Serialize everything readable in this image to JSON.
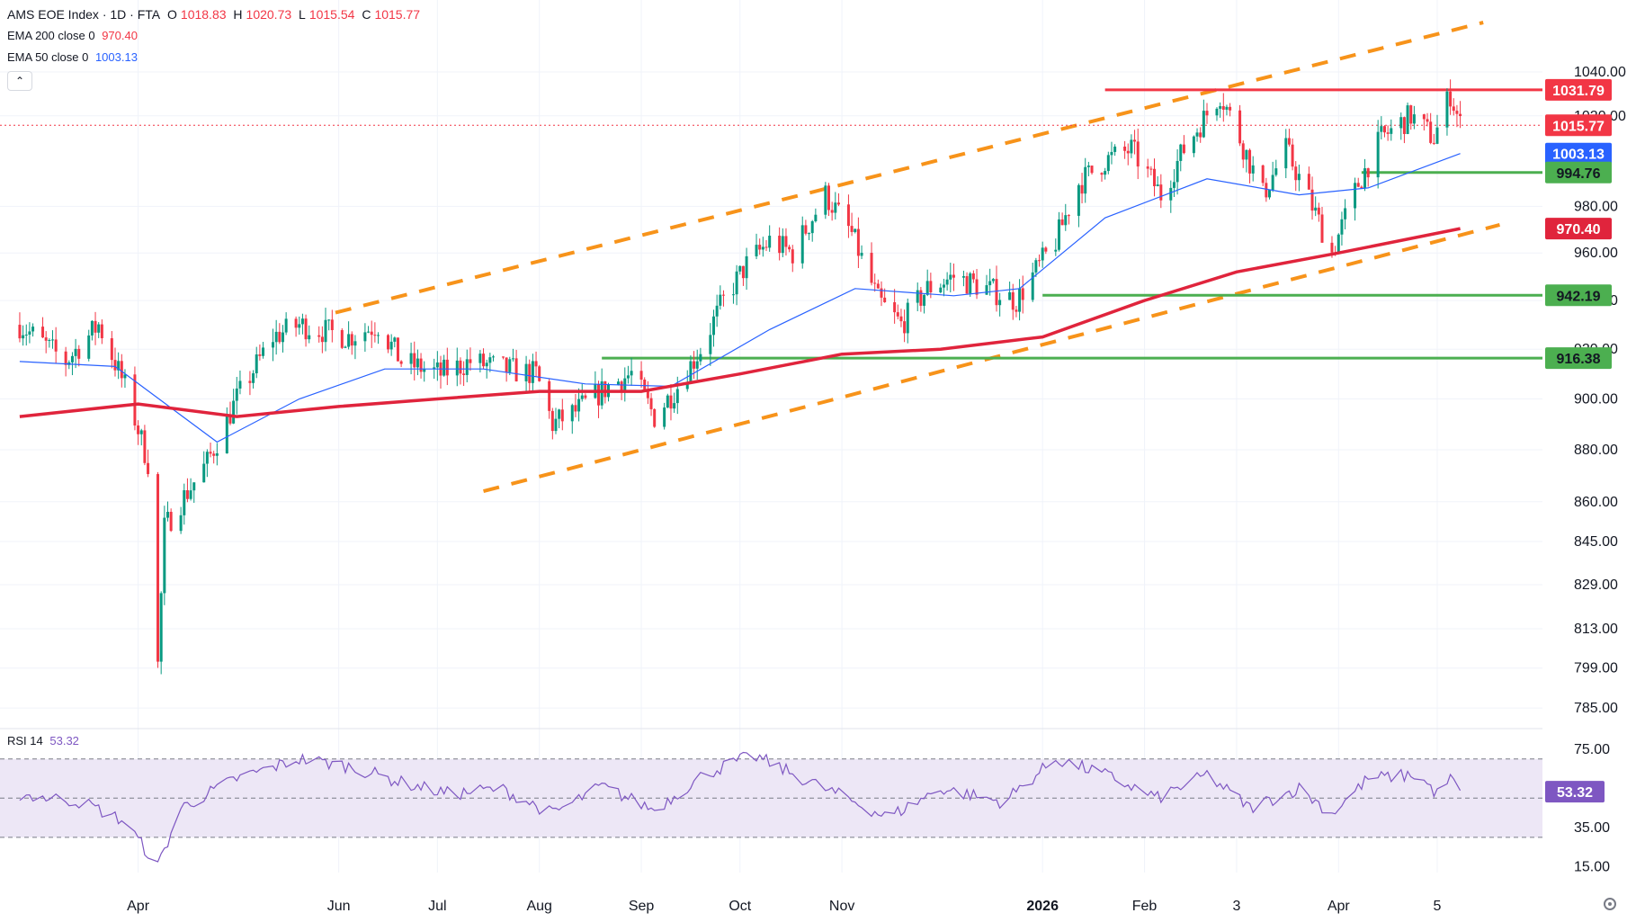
{
  "header": {
    "title": "AMS EOE Index · 1D · FTA",
    "ohlc": [
      {
        "label": "O",
        "value": "1018.83"
      },
      {
        "label": "H",
        "value": "1020.73"
      },
      {
        "label": "L",
        "value": "1015.54"
      },
      {
        "label": "C",
        "value": "1015.77"
      }
    ],
    "ema200": {
      "label": "EMA 200 close 0",
      "value": "970.40",
      "color": "#f23645"
    },
    "ema50": {
      "label": "EMA 50 close 0",
      "value": "1003.13",
      "color": "#2962ff"
    },
    "collapse_icon": "chevron-up-icon",
    "collapse_glyph": "⌃"
  },
  "rsi_header": {
    "label": "RSI 14",
    "value": "53.32",
    "color": "#7e57c2"
  },
  "colors": {
    "up": "#089981",
    "down": "#f23645",
    "ema200": "#e0243c",
    "ema50": "#2962ff",
    "channel": "#f7931a",
    "support": "#4caf50",
    "resistance": "#f23645",
    "rsi": "#7e57c2",
    "rsi_band": "#ede7f6"
  },
  "chart_data": [
    {
      "type": "candlestick",
      "title": "AMS EOE Index · 1D · FTA",
      "x_labels": [
        "Apr",
        "Jun",
        "Jul",
        "Aug",
        "Sep",
        "Oct",
        "Nov",
        "2026",
        "Feb",
        "3",
        "Apr",
        "5"
      ],
      "y_ticks": [
        "1040.00",
        "1020.00",
        "980.00",
        "960.00",
        "940.00",
        "920.00",
        "900.00",
        "880.00",
        "860.00",
        "845.00",
        "829.00",
        "813.00",
        "799.00",
        "785.00"
      ],
      "y_scale": "log",
      "ylim": [
        781,
        1063
      ],
      "grid": true,
      "price_tags": [
        {
          "value": "1031.79",
          "kind": "resistance"
        },
        {
          "value": "1015.77",
          "kind": "last"
        },
        {
          "value": "1003.13",
          "kind": "ema50"
        },
        {
          "value": "994.76",
          "kind": "support"
        },
        {
          "value": "970.40",
          "kind": "ema200"
        },
        {
          "value": "942.19",
          "kind": "support"
        },
        {
          "value": "916.38",
          "kind": "support"
        }
      ],
      "horizontal_lines": [
        {
          "value": 1031.79,
          "kind": "resistance",
          "from": "2026-01-20"
        },
        {
          "value": 994.76,
          "kind": "support",
          "from": "2026-04-08"
        },
        {
          "value": 942.19,
          "kind": "support",
          "from": "2026-01-01"
        },
        {
          "value": 916.38,
          "kind": "support",
          "from": "2025-08-20"
        }
      ],
      "channel": {
        "upper": [
          [
            "2025-05-31",
            935
          ],
          [
            "2026-05-15",
            1063
          ]
        ],
        "lower": [
          [
            "2025-07-15",
            864
          ],
          [
            "2026-05-20",
            972
          ]
        ]
      },
      "price_path": [
        [
          "2025-02-24",
          930
        ],
        [
          "2025-03-10",
          915
        ],
        [
          "2025-03-20",
          930
        ],
        [
          "2025-03-28",
          905
        ],
        [
          "2025-04-04",
          875
        ],
        [
          "2025-04-07",
          800
        ],
        [
          "2025-04-09",
          850
        ],
        [
          "2025-04-14",
          860
        ],
        [
          "2025-04-22",
          875
        ],
        [
          "2025-05-01",
          900
        ],
        [
          "2025-05-12",
          925
        ],
        [
          "2025-05-20",
          930
        ],
        [
          "2025-06-04",
          925
        ],
        [
          "2025-06-13",
          930
        ],
        [
          "2025-06-20",
          915
        ],
        [
          "2025-07-02",
          910
        ],
        [
          "2025-07-11",
          915
        ],
        [
          "2025-07-21",
          912
        ],
        [
          "2025-07-31",
          910
        ],
        [
          "2025-08-05",
          890
        ],
        [
          "2025-08-12",
          895
        ],
        [
          "2025-08-22",
          905
        ],
        [
          "2025-08-29",
          910
        ],
        [
          "2025-09-05",
          893
        ],
        [
          "2025-09-12",
          905
        ],
        [
          "2025-09-19",
          920
        ],
        [
          "2025-09-26",
          940
        ],
        [
          "2025-10-03",
          955
        ],
        [
          "2025-10-10",
          965
        ],
        [
          "2025-10-17",
          960
        ],
        [
          "2025-10-27",
          985
        ],
        [
          "2025-11-04",
          968
        ],
        [
          "2025-11-12",
          940
        ],
        [
          "2025-11-19",
          930
        ],
        [
          "2025-11-27",
          945
        ],
        [
          "2025-12-05",
          950
        ],
        [
          "2025-12-15",
          945
        ],
        [
          "2025-12-24",
          940
        ],
        [
          "2026-01-05",
          965
        ],
        [
          "2026-01-12",
          990
        ],
        [
          "2026-01-20",
          1000
        ],
        [
          "2026-01-28",
          1005
        ],
        [
          "2026-02-06",
          985
        ],
        [
          "2026-02-13",
          1005
        ],
        [
          "2026-02-24",
          1030
        ],
        [
          "2026-03-02",
          1010
        ],
        [
          "2026-03-09",
          985
        ],
        [
          "2026-03-16",
          1005
        ],
        [
          "2026-03-24",
          980
        ],
        [
          "2026-03-30",
          960
        ],
        [
          "2026-04-07",
          990
        ],
        [
          "2026-04-14",
          1010
        ],
        [
          "2026-04-23",
          1020
        ],
        [
          "2026-04-30",
          1010
        ],
        [
          "2026-05-05",
          1030
        ],
        [
          "2026-05-08",
          1016
        ]
      ],
      "ema200_path": [
        [
          "2025-02-24",
          893
        ],
        [
          "2025-04-01",
          898
        ],
        [
          "2025-05-01",
          893
        ],
        [
          "2025-06-01",
          897
        ],
        [
          "2025-07-01",
          900
        ],
        [
          "2025-08-01",
          903
        ],
        [
          "2025-09-01",
          903
        ],
        [
          "2025-10-01",
          910
        ],
        [
          "2025-11-01",
          918
        ],
        [
          "2025-12-01",
          920
        ],
        [
          "2026-01-01",
          925
        ],
        [
          "2026-02-01",
          940
        ],
        [
          "2026-03-01",
          952
        ],
        [
          "2026-04-01",
          960
        ],
        [
          "2026-05-08",
          970.4
        ]
      ],
      "ema50_path": [
        [
          "2025-02-24",
          915
        ],
        [
          "2025-03-25",
          913
        ],
        [
          "2025-04-25",
          883
        ],
        [
          "2025-05-20",
          900
        ],
        [
          "2025-06-15",
          912
        ],
        [
          "2025-07-15",
          912
        ],
        [
          "2025-08-15",
          906
        ],
        [
          "2025-09-10",
          905
        ],
        [
          "2025-10-10",
          928
        ],
        [
          "2025-11-05",
          945
        ],
        [
          "2025-12-05",
          942
        ],
        [
          "2025-12-25",
          945
        ],
        [
          "2026-01-20",
          975
        ],
        [
          "2026-02-20",
          992
        ],
        [
          "2026-03-20",
          985
        ],
        [
          "2026-04-10",
          988
        ],
        [
          "2026-05-08",
          1003.13
        ]
      ],
      "last": {
        "open": 1018.83,
        "high": 1020.73,
        "low": 1015.54,
        "close": 1015.77
      }
    },
    {
      "type": "line",
      "title": "RSI 14",
      "y_ticks": [
        "75.00",
        "35.00",
        "15.00"
      ],
      "band": [
        30,
        70
      ],
      "midline": 50,
      "ylim": [
        12,
        80
      ],
      "last_value": "53.32",
      "rsi_path": [
        [
          "2025-02-24",
          52
        ],
        [
          "2025-03-15",
          48
        ],
        [
          "2025-03-28",
          38
        ],
        [
          "2025-04-07",
          15
        ],
        [
          "2025-04-14",
          45
        ],
        [
          "2025-05-01",
          60
        ],
        [
          "2025-05-20",
          70
        ],
        [
          "2025-06-05",
          66
        ],
        [
          "2025-06-20",
          58
        ],
        [
          "2025-07-05",
          52
        ],
        [
          "2025-07-20",
          55
        ],
        [
          "2025-08-05",
          42
        ],
        [
          "2025-08-20",
          56
        ],
        [
          "2025-09-05",
          44
        ],
        [
          "2025-09-20",
          62
        ],
        [
          "2025-10-05",
          72
        ],
        [
          "2025-10-20",
          60
        ],
        [
          "2025-11-05",
          48
        ],
        [
          "2025-11-15",
          40
        ],
        [
          "2025-12-01",
          55
        ],
        [
          "2025-12-20",
          48
        ],
        [
          "2026-01-05",
          70
        ],
        [
          "2026-01-20",
          62
        ],
        [
          "2026-02-05",
          50
        ],
        [
          "2026-02-20",
          62
        ],
        [
          "2026-03-05",
          45
        ],
        [
          "2026-03-20",
          55
        ],
        [
          "2026-03-30",
          42
        ],
        [
          "2026-04-10",
          60
        ],
        [
          "2026-04-25",
          62
        ],
        [
          "2026-05-01",
          52
        ],
        [
          "2026-05-05",
          60
        ],
        [
          "2026-05-08",
          53.32
        ]
      ]
    }
  ]
}
